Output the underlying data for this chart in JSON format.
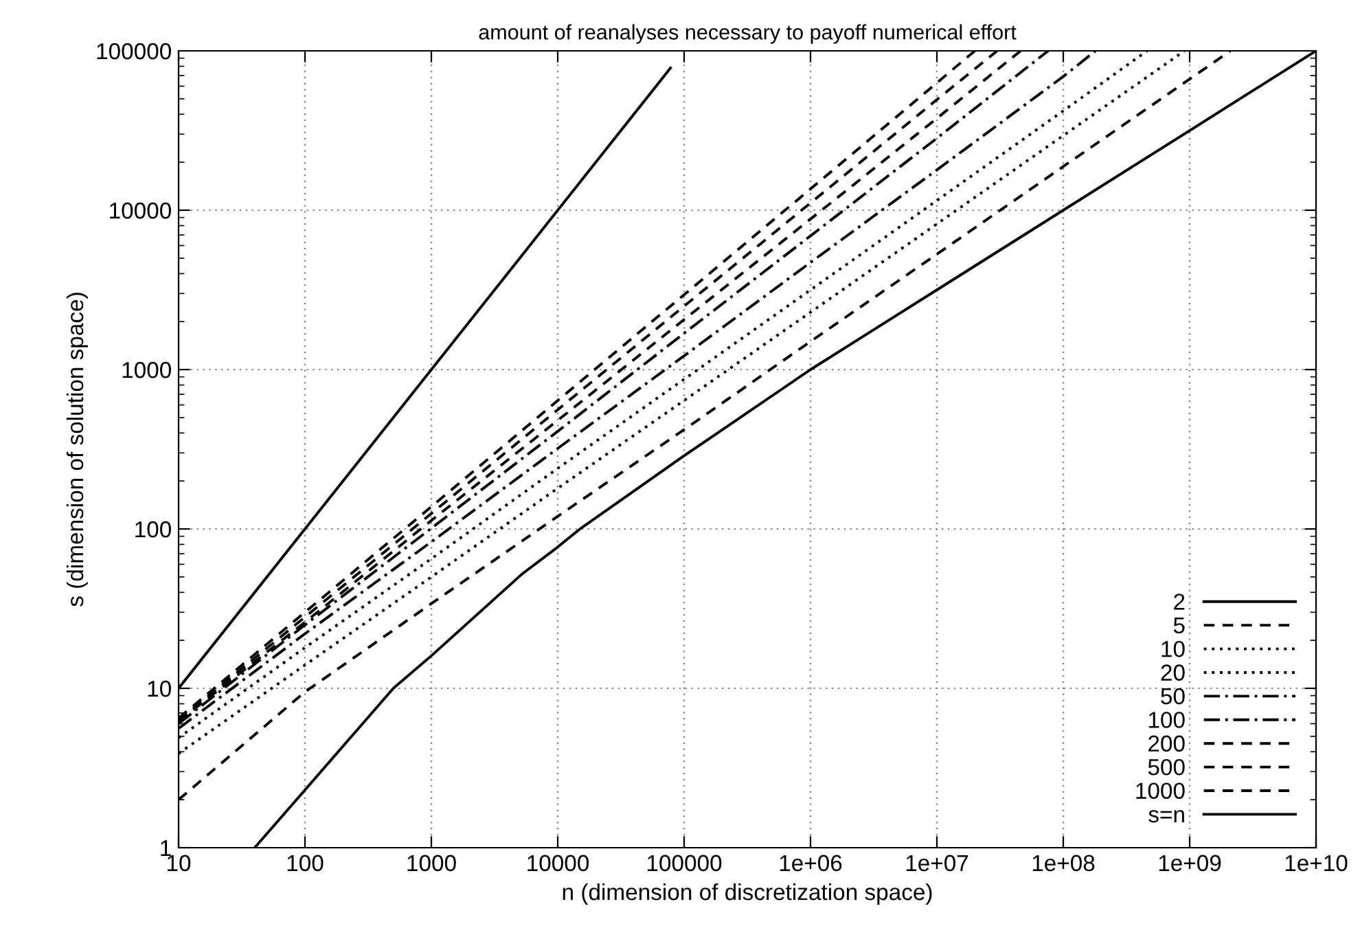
{
  "chart_data": {
    "type": "line",
    "title": "amount of reanalyses necessary to payoff numerical effort",
    "xlabel": "n (dimension of discretization space)",
    "ylabel": "s (dimension of solution space)",
    "log": "xy",
    "grid": true,
    "legend": "bottom right",
    "xlim": [
      10,
      10000000000
    ],
    "ylim": [
      1,
      100000
    ],
    "xticks": [
      10,
      100,
      1000,
      10000,
      100000,
      {
        "value": 1000000,
        "label": "1e+06"
      },
      {
        "value": 10000000,
        "label": "1e+07"
      },
      {
        "value": 100000000,
        "label": "1e+08"
      },
      {
        "value": 1000000000,
        "label": "1e+09"
      },
      {
        "value": 10000000000,
        "label": "1e+10"
      }
    ],
    "yticks": [
      1,
      10,
      100,
      1000,
      10000,
      100000
    ],
    "series": [
      {
        "name": "2",
        "color": "#000000",
        "line_style": "solid",
        "x": [
          40,
          100,
          500,
          1000,
          5200,
          10000,
          15000,
          100000,
          1000000,
          10000000,
          100000000,
          1000000000,
          10000000000
        ],
        "values": [
          1,
          2.3,
          10,
          16,
          52,
          77,
          100,
          288,
          1000,
          3162,
          10000,
          31600,
          100000
        ]
      },
      {
        "name": "5",
        "color": "#000000",
        "line_style": "dashed",
        "x": [
          10,
          100,
          1000,
          10000,
          100000,
          1000000,
          10000000,
          100000000,
          1000000000,
          2100000000
        ],
        "values": [
          2.0,
          9.5,
          34,
          120,
          420,
          1500,
          5300,
          18800,
          66500,
          100000
        ]
      },
      {
        "name": "10",
        "color": "#000000",
        "line_style": "dotted",
        "x": [
          10,
          100,
          1000,
          10000,
          100000,
          1000000,
          10000000,
          100000000,
          910000000
        ],
        "values": [
          3.9,
          14,
          50,
          180,
          640,
          2290,
          8200,
          29400,
          100000
        ]
      },
      {
        "name": "20",
        "color": "#000000",
        "line_style": "dotted",
        "x": [
          10,
          100,
          1000,
          10000,
          100000,
          1000000,
          10000000,
          100000000,
          460000000
        ],
        "values": [
          4.9,
          18,
          65,
          240,
          870,
          3160,
          11500,
          42000,
          100000
        ]
      },
      {
        "name": "50",
        "color": "#000000",
        "line_style": "dashdot",
        "x": [
          10,
          100,
          1000,
          10000,
          100000,
          1000000,
          10000000,
          100000000,
          180000000
        ],
        "values": [
          5.6,
          22,
          83,
          320,
          1220,
          4700,
          17900,
          69000,
          100000
        ]
      },
      {
        "name": "100",
        "color": "#000000",
        "line_style": "dashdot",
        "x": [
          10,
          100,
          1000,
          10000,
          100000,
          1000000,
          10000000,
          76000000
        ],
        "values": [
          6.0,
          25,
          101,
          410,
          1690,
          6900,
          28300,
          100000
        ]
      },
      {
        "name": "200",
        "color": "#000000",
        "line_style": "dashed",
        "x": [
          10,
          100,
          1000,
          10000,
          100000,
          1000000,
          10000000,
          46000000
        ],
        "values": [
          6.2,
          26,
          113,
          480,
          2060,
          8800,
          37700,
          100000
        ]
      },
      {
        "name": "500",
        "color": "#000000",
        "line_style": "dashed",
        "x": [
          10,
          100,
          1000,
          10000,
          100000,
          1000000,
          10000000,
          30000000
        ],
        "values": [
          6.3,
          28,
          125,
          560,
          2500,
          11100,
          49400,
          100000
        ]
      },
      {
        "name": "1000",
        "color": "#000000",
        "line_style": "dashed",
        "x": [
          10,
          100,
          1000,
          10000,
          100000,
          1000000,
          10000000,
          20000000
        ],
        "values": [
          6.5,
          30,
          138,
          640,
          2950,
          13600,
          63000,
          100000
        ]
      },
      {
        "name": "s=n",
        "color": "#000000",
        "line_style": "solid",
        "x": [
          10,
          78000
        ],
        "values": [
          10,
          78000
        ]
      }
    ]
  }
}
